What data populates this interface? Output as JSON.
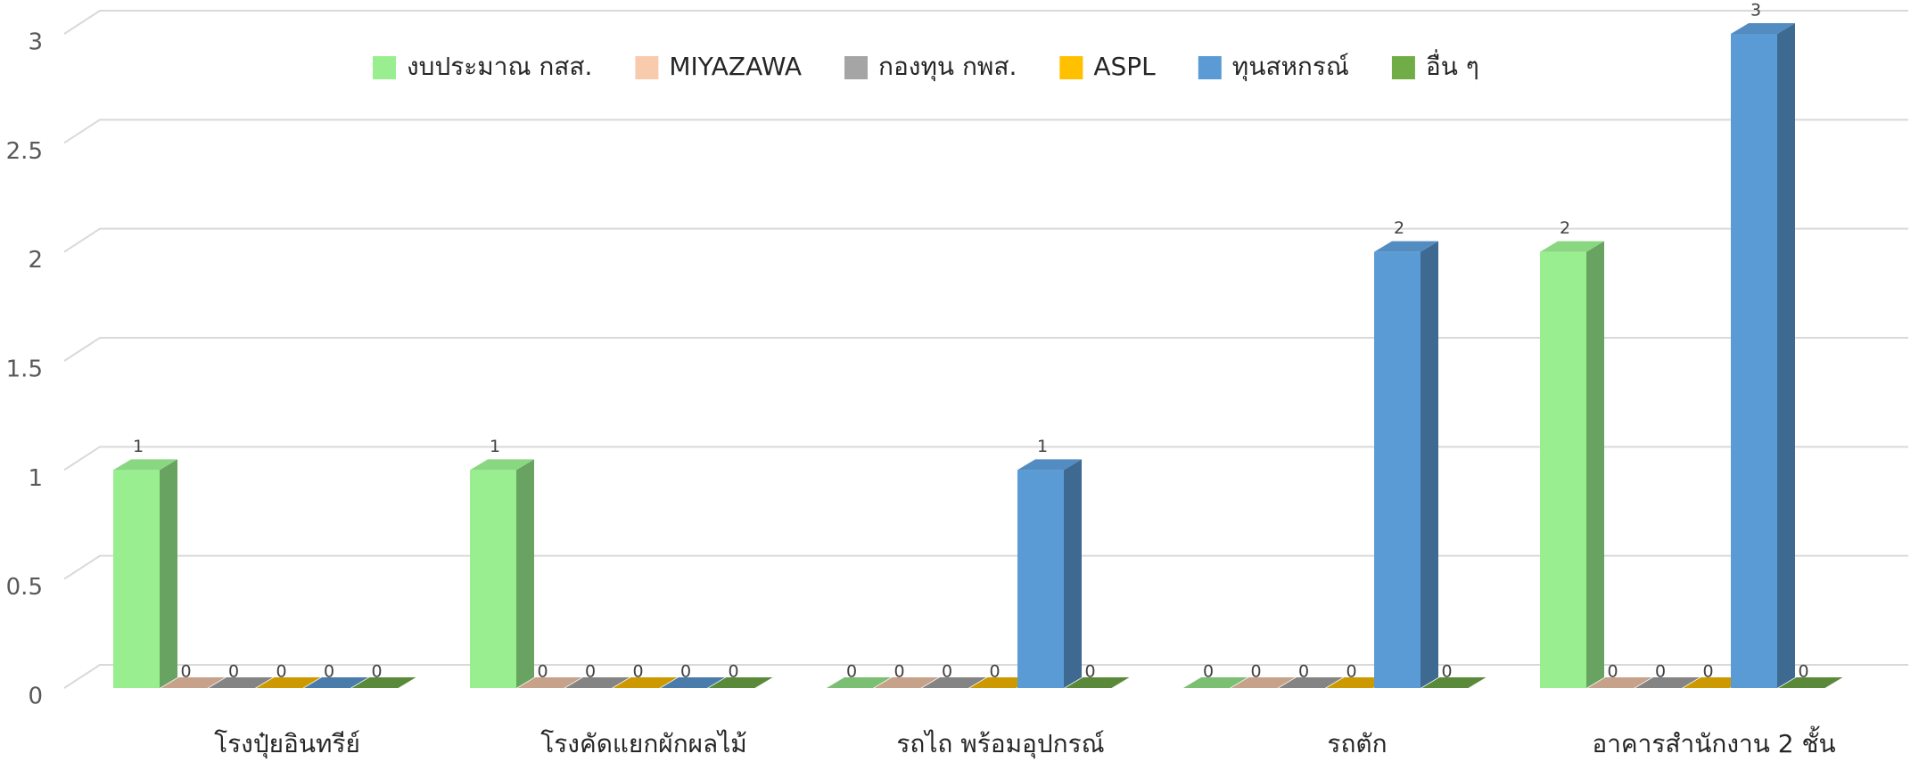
{
  "chart_data": {
    "type": "bar3d",
    "categories": [
      "โรงปุ๋ยอินทรีย์",
      "โรงคัดแยกผักผลไม้",
      "รถไถ พร้อมอุปกรณ์",
      "รถตัก",
      "อาคารสำนักงาน 2 ชั้น"
    ],
    "series": [
      {
        "name": "งบประมาณ กสส.",
        "color": "#99ef8f",
        "values": [
          1,
          1,
          0,
          0,
          2
        ]
      },
      {
        "name": "MIYAZAWA",
        "color": "#f8cbad",
        "values": [
          0,
          0,
          0,
          0,
          0
        ]
      },
      {
        "name": "กองทุน กพส.",
        "color": "#a5a5a5",
        "values": [
          0,
          0,
          0,
          0,
          0
        ]
      },
      {
        "name": "ASPL",
        "color": "#ffc000",
        "values": [
          0,
          0,
          0,
          0,
          0
        ]
      },
      {
        "name": "ทุนสหกรณ์",
        "color": "#5b9bd5",
        "values": [
          0,
          0,
          1,
          2,
          3
        ]
      },
      {
        "name": "อื่น ๆ",
        "color": "#70ad47",
        "values": [
          0,
          0,
          0,
          0,
          0
        ]
      }
    ],
    "ylim": [
      0,
      3
    ],
    "yticks": [
      0,
      0.5,
      1,
      1.5,
      2,
      2.5,
      3
    ],
    "grid": true,
    "legend": "top"
  }
}
